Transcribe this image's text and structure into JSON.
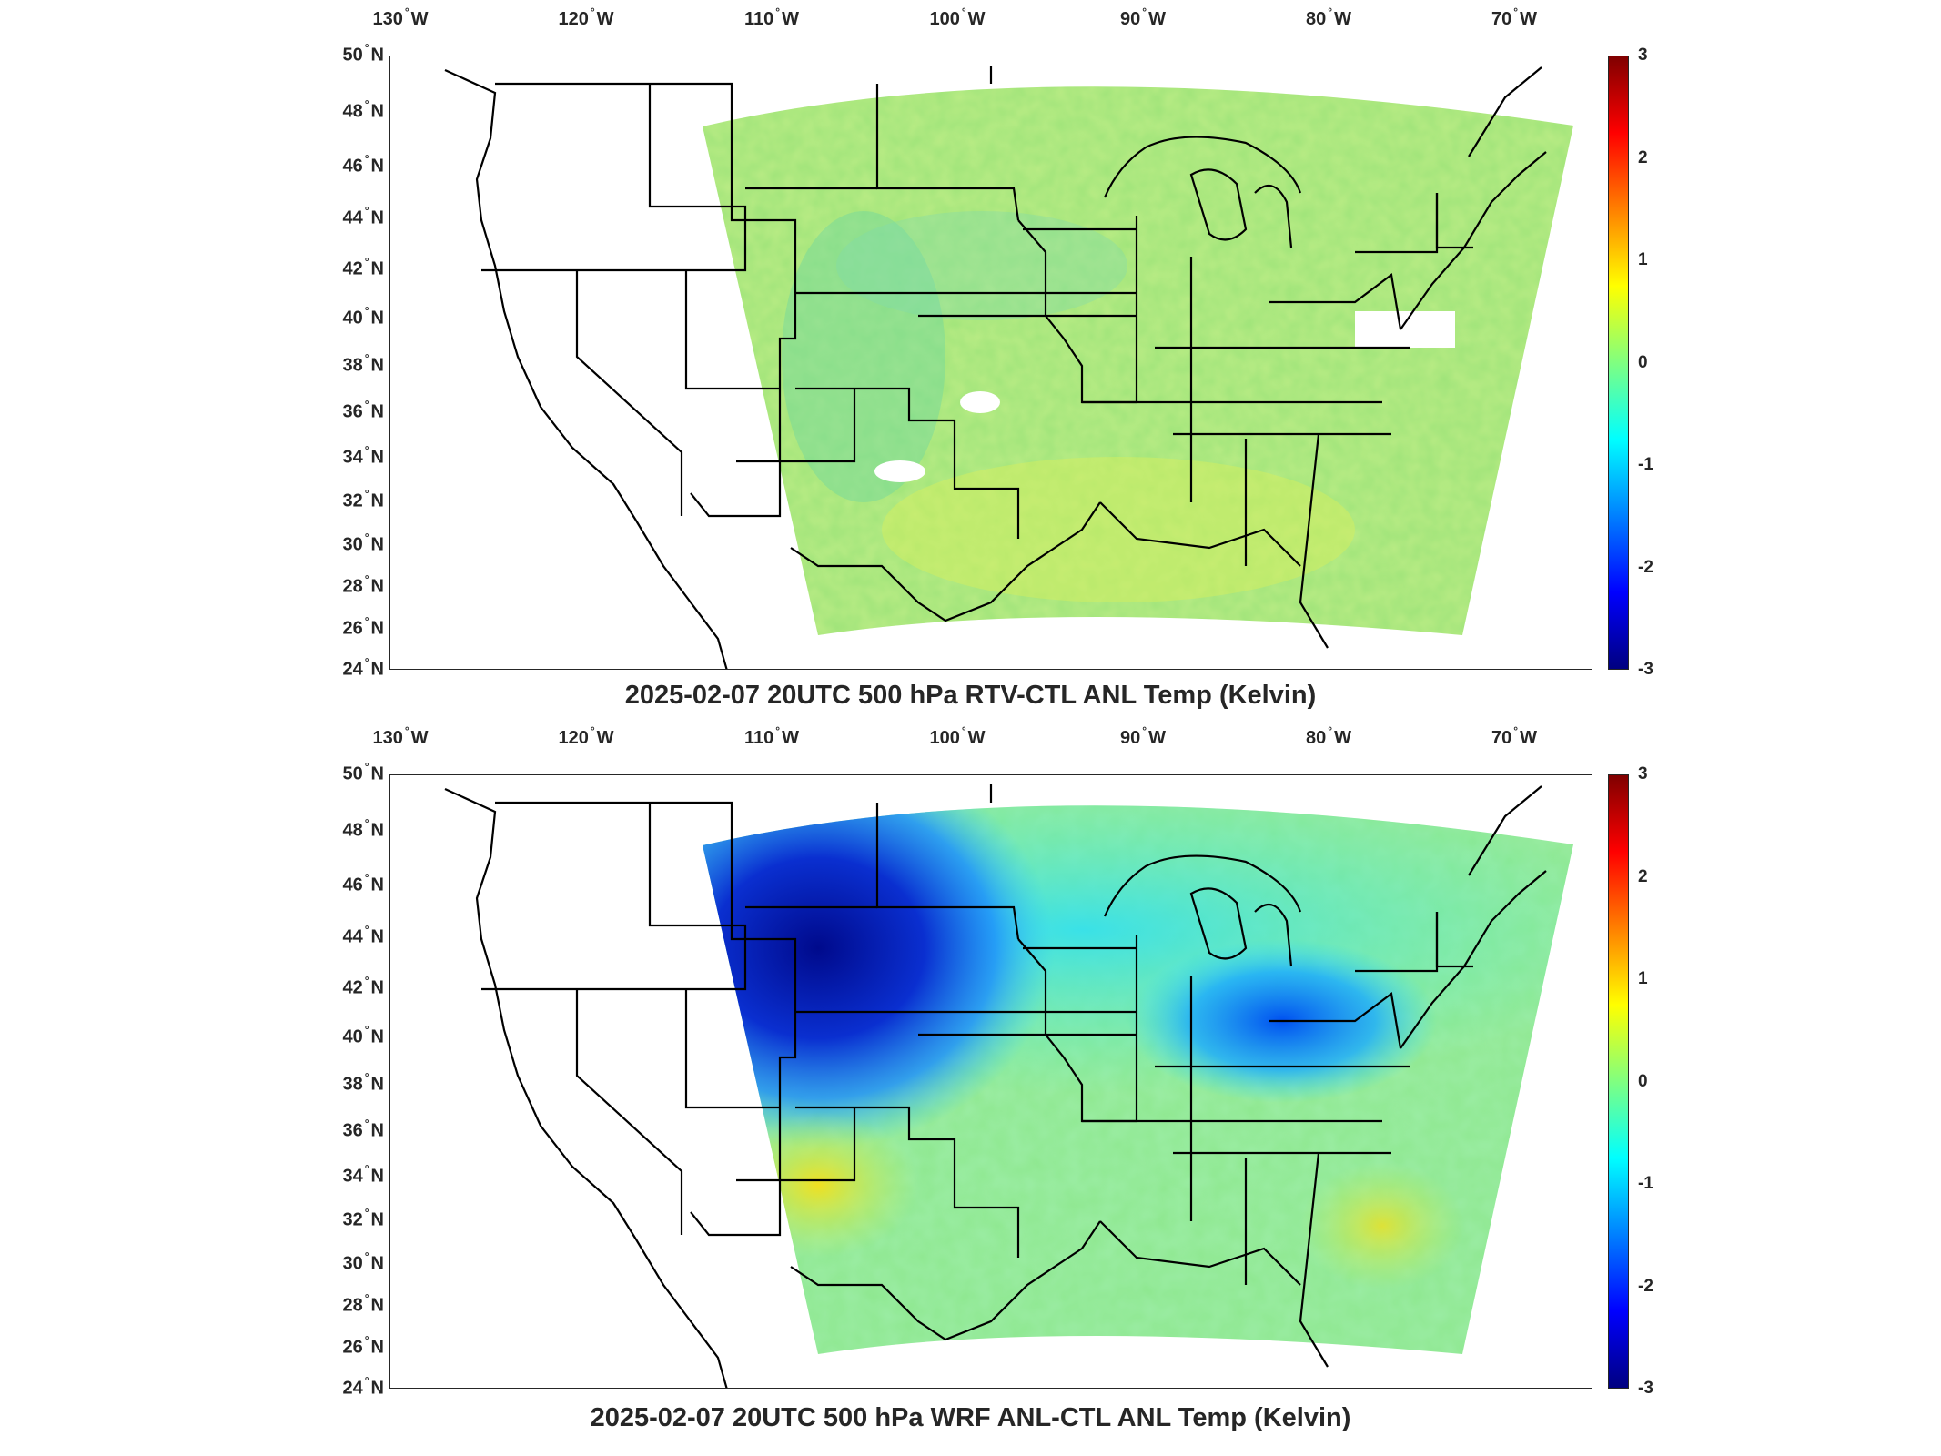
{
  "panels": [
    {
      "title": "2025-02-07 20UTC 500 hPa RTV-CTL ANL Temp (Kelvin)",
      "field_mean_color": "#a8e86a",
      "anomaly": "weak"
    },
    {
      "title": "2025-02-07 20UTC 500 hPa WRF ANL-CTL ANL Temp (Kelvin)",
      "field_mean_color": "#8fe890",
      "anomaly": "strong-negative-northwest"
    }
  ],
  "lon_labels": [
    {
      "deg": "130",
      "hemi": "W"
    },
    {
      "deg": "120",
      "hemi": "W"
    },
    {
      "deg": "110",
      "hemi": "W"
    },
    {
      "deg": "100",
      "hemi": "W"
    },
    {
      "deg": "90",
      "hemi": "W"
    },
    {
      "deg": "80",
      "hemi": "W"
    },
    {
      "deg": "70",
      "hemi": "W"
    }
  ],
  "lat_labels": [
    {
      "deg": "50",
      "hemi": "N"
    },
    {
      "deg": "48",
      "hemi": "N"
    },
    {
      "deg": "46",
      "hemi": "N"
    },
    {
      "deg": "44",
      "hemi": "N"
    },
    {
      "deg": "42",
      "hemi": "N"
    },
    {
      "deg": "40",
      "hemi": "N"
    },
    {
      "deg": "38",
      "hemi": "N"
    },
    {
      "deg": "36",
      "hemi": "N"
    },
    {
      "deg": "34",
      "hemi": "N"
    },
    {
      "deg": "32",
      "hemi": "N"
    },
    {
      "deg": "30",
      "hemi": "N"
    },
    {
      "deg": "28",
      "hemi": "N"
    },
    {
      "deg": "26",
      "hemi": "N"
    },
    {
      "deg": "24",
      "hemi": "N"
    }
  ],
  "colorbar": {
    "ticks": [
      "3",
      "2",
      "1",
      "0",
      "-1",
      "-2",
      "-3"
    ],
    "range": [
      -3,
      3
    ],
    "colormap": "jet"
  },
  "map_extent": {
    "lon": [
      -130,
      -65
    ],
    "lat": [
      24,
      50
    ]
  }
}
